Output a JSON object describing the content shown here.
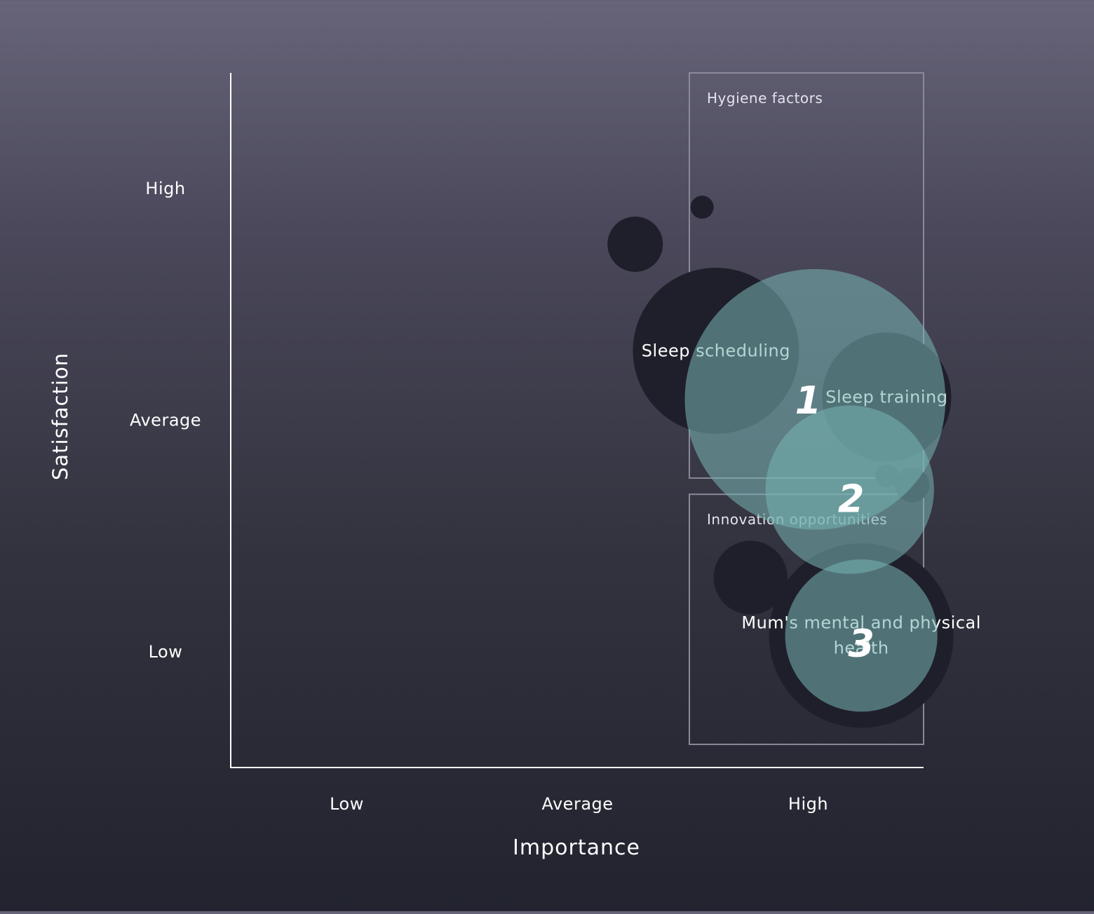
{
  "chart_data": {
    "type": "scatter",
    "variant": "bubble",
    "xlabel": "Importance",
    "ylabel": "Satisfaction",
    "x_ticks": [
      "Low",
      "Average",
      "High"
    ],
    "y_ticks": [
      "High",
      "Average",
      "Low"
    ],
    "xlim": [
      0,
      3
    ],
    "ylim": [
      0,
      3
    ],
    "regions": [
      {
        "name": "Hygiene factors",
        "x_range": [
          2.0,
          3.0
        ],
        "y_range": [
          1.25,
          3.0
        ]
      },
      {
        "name": "Innovation opportunities",
        "x_range": [
          2.0,
          3.0
        ],
        "y_range": [
          0.1,
          1.18
        ]
      }
    ],
    "dark_bubbles": [
      {
        "label": "",
        "x": 1.75,
        "y": 2.26,
        "size": 0.24
      },
      {
        "label": "",
        "x": 2.04,
        "y": 2.42,
        "size": 0.1
      },
      {
        "label": "Sleep scheduling",
        "x": 2.1,
        "y": 1.8,
        "size": 0.72
      },
      {
        "label": "Sleep training",
        "x": 2.84,
        "y": 1.6,
        "size": 0.56
      },
      {
        "label": "",
        "x": 2.84,
        "y": 1.26,
        "size": 0.1
      },
      {
        "label": "",
        "x": 2.95,
        "y": 1.22,
        "size": 0.15
      },
      {
        "label": "",
        "x": 2.25,
        "y": 0.82,
        "size": 0.32
      },
      {
        "label": "Mum's mental and physical health",
        "x": 2.73,
        "y": 0.57,
        "size": 0.8
      }
    ],
    "highlight_bubbles": [
      {
        "label": "1",
        "x": 2.53,
        "y": 1.59,
        "size": 1.13
      },
      {
        "label": "2",
        "x": 2.68,
        "y": 1.2,
        "size": 0.73
      },
      {
        "label": "3",
        "x": 2.73,
        "y": 0.57,
        "size": 0.66
      }
    ],
    "colors": {
      "dark_bubble": "#1f1f2b",
      "highlight_bubble": "#77b4b2",
      "axis": "#ffffff",
      "region_border": "#8a8999",
      "text": "#ffffff"
    }
  }
}
